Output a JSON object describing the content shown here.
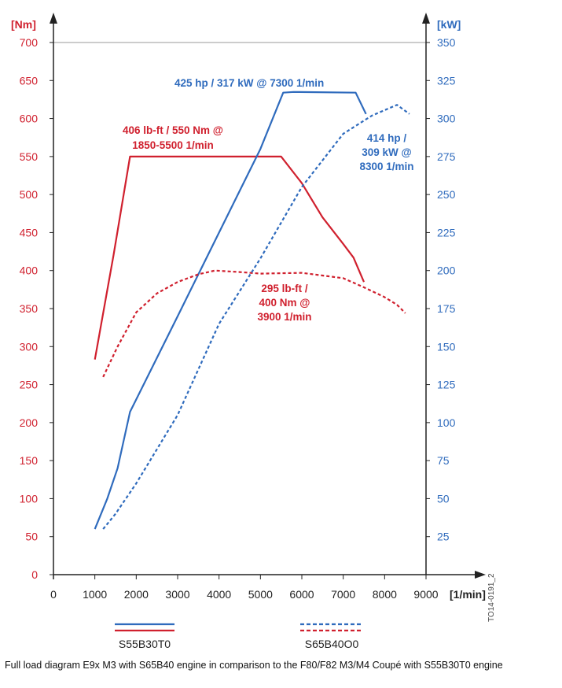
{
  "chart_data": {
    "type": "line",
    "x": {
      "label": "[1/min]",
      "range": [
        0,
        9000
      ],
      "ticks": [
        0,
        1000,
        2000,
        3000,
        4000,
        5000,
        6000,
        7000,
        8000,
        9000
      ]
    },
    "y_left": {
      "label": "[Nm]",
      "range": [
        0,
        700
      ],
      "ticks": [
        0,
        50,
        100,
        150,
        200,
        250,
        300,
        350,
        400,
        450,
        500,
        550,
        600,
        650,
        700
      ]
    },
    "y_right": {
      "label": "[kW]",
      "range": [
        0,
        350
      ],
      "ticks": [
        25,
        50,
        75,
        100,
        125,
        150,
        175,
        200,
        225,
        250,
        275,
        300,
        325,
        350
      ]
    },
    "grid": false,
    "series": [
      {
        "name": "S55B30T0 torque",
        "engine": "S55B30T0",
        "quantity": "torque",
        "axis": "left",
        "unit": "Nm",
        "color": "#d0202e",
        "style": "solid",
        "points": [
          [
            1000,
            283
          ],
          [
            1450,
            420
          ],
          [
            1850,
            550
          ],
          [
            5500,
            550
          ],
          [
            6000,
            515
          ],
          [
            6500,
            470
          ],
          [
            7000,
            435
          ],
          [
            7250,
            417
          ],
          [
            7500,
            385
          ]
        ]
      },
      {
        "name": "S55B30T0 power",
        "engine": "S55B30T0",
        "quantity": "power",
        "axis": "right",
        "unit": "kW",
        "color": "#2f6bbd",
        "style": "solid",
        "points": [
          [
            1000,
            30
          ],
          [
            1300,
            50
          ],
          [
            1550,
            70
          ],
          [
            1850,
            107
          ],
          [
            3000,
            170
          ],
          [
            4000,
            225
          ],
          [
            5000,
            280
          ],
          [
            5550,
            317
          ],
          [
            5800,
            317.5
          ],
          [
            7300,
            317
          ],
          [
            7550,
            303
          ]
        ]
      },
      {
        "name": "S65B40O0 torque",
        "engine": "S65B40O0",
        "quantity": "torque",
        "axis": "left",
        "unit": "Nm",
        "color": "#d0202e",
        "style": "dashed",
        "points": [
          [
            1200,
            260
          ],
          [
            1550,
            300
          ],
          [
            2000,
            345
          ],
          [
            2500,
            370
          ],
          [
            3000,
            385
          ],
          [
            3500,
            395
          ],
          [
            3900,
            400
          ],
          [
            4500,
            398
          ],
          [
            5000,
            396
          ],
          [
            6000,
            397
          ],
          [
            7000,
            390
          ],
          [
            7500,
            378
          ],
          [
            8000,
            365
          ],
          [
            8300,
            355
          ],
          [
            8500,
            344
          ]
        ]
      },
      {
        "name": "S65B40O0 power",
        "engine": "S65B40O0",
        "quantity": "power",
        "axis": "right",
        "unit": "kW",
        "color": "#2f6bbd",
        "style": "dashed",
        "points": [
          [
            1200,
            30
          ],
          [
            1500,
            40
          ],
          [
            2000,
            60
          ],
          [
            3000,
            105
          ],
          [
            4000,
            165
          ],
          [
            5000,
            208
          ],
          [
            6000,
            255
          ],
          [
            7000,
            290
          ],
          [
            7700,
            302
          ],
          [
            8300,
            309
          ],
          [
            8600,
            303
          ]
        ]
      }
    ],
    "annotations": [
      {
        "text": "425 hp / 317 kW @ 7300 1/min",
        "color": "#2f6bbd"
      },
      {
        "text": "406 lb-ft / 550 Nm @",
        "color": "#d0202e"
      },
      {
        "text": "1850-5500 1/min",
        "color": "#d0202e"
      },
      {
        "text": "414 hp /",
        "color": "#2f6bbd"
      },
      {
        "text": "309 kW @",
        "color": "#2f6bbd"
      },
      {
        "text": "8300 1/min",
        "color": "#2f6bbd"
      },
      {
        "text": "295 lb-ft /",
        "color": "#d0202e"
      },
      {
        "text": "400 Nm @",
        "color": "#d0202e"
      },
      {
        "text": "3900 1/min",
        "color": "#d0202e"
      }
    ],
    "legend": [
      {
        "label": "S55B30T0",
        "style": "solid",
        "colors": [
          "#2f6bbd",
          "#d0202e"
        ]
      },
      {
        "label": "S65B40O0",
        "style": "dashed",
        "colors": [
          "#2f6bbd",
          "#d0202e"
        ]
      }
    ]
  },
  "caption": "Full load diagram E9x M3 with S65B40 engine in comparison to the F80/F82 M3/M4 Coupé with S55B30T0 engine",
  "doc_id": "TO14-0191_2"
}
